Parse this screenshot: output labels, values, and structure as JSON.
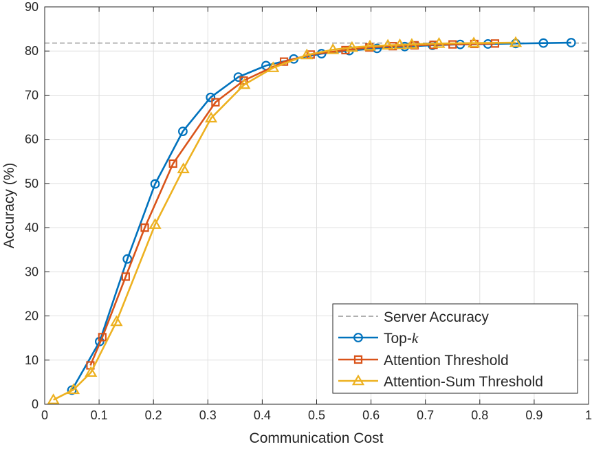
{
  "chart_data": {
    "type": "line",
    "title": "",
    "xlabel": "Communication Cost",
    "ylabel": "Accuracy (%)",
    "xlim": [
      0,
      1
    ],
    "ylim": [
      0,
      90
    ],
    "xticks": [
      "0",
      "0.1",
      "0.2",
      "0.3",
      "0.4",
      "0.5",
      "0.6",
      "0.7",
      "0.8",
      "0.9",
      "1"
    ],
    "yticks": [
      "0",
      "10",
      "20",
      "30",
      "40",
      "50",
      "60",
      "70",
      "80",
      "90"
    ],
    "grid": true,
    "legend_position": "bottom-right",
    "reference_line": {
      "name": "Server Accuracy",
      "y": 81.8,
      "color": "#808080",
      "style": "dashed"
    },
    "series": [
      {
        "name_prefix": "Top-",
        "name_var": "k",
        "color": "#0072BD",
        "marker": "circle",
        "x": [
          0.05,
          0.101,
          0.152,
          0.203,
          0.254,
          0.305,
          0.356,
          0.407,
          0.458,
          0.509,
          0.56,
          0.611,
          0.662,
          0.713,
          0.764,
          0.815,
          0.866,
          0.917,
          0.968
        ],
        "y": [
          3.2,
          14.2,
          32.9,
          49.9,
          61.8,
          69.5,
          74.1,
          76.7,
          78.2,
          79.4,
          80.1,
          80.6,
          81.0,
          81.3,
          81.5,
          81.6,
          81.7,
          81.8,
          81.9
        ]
      },
      {
        "name": "Attention Threshold",
        "color": "#D95319",
        "marker": "square",
        "x": [
          0.084,
          0.106,
          0.149,
          0.184,
          0.236,
          0.314,
          0.366,
          0.44,
          0.489,
          0.553,
          0.597,
          0.64,
          0.68,
          0.715,
          0.75,
          0.79,
          0.828
        ],
        "y": [
          8.8,
          15.2,
          28.9,
          40.0,
          54.5,
          68.4,
          73.3,
          77.6,
          79.2,
          80.2,
          80.8,
          81.1,
          81.3,
          81.4,
          81.5,
          81.6,
          81.7
        ]
      },
      {
        "name": "Attention-Sum Threshold",
        "color": "#EDB120",
        "marker": "triangle",
        "x": [
          0.016,
          0.053,
          0.085,
          0.132,
          0.203,
          0.255,
          0.306,
          0.367,
          0.42,
          0.482,
          0.53,
          0.565,
          0.598,
          0.631,
          0.653,
          0.675,
          0.725,
          0.789,
          0.866
        ],
        "y": [
          1.0,
          3.3,
          7.2,
          18.7,
          40.7,
          53.3,
          64.8,
          72.4,
          76.2,
          79.1,
          80.3,
          80.8,
          81.1,
          81.3,
          81.4,
          81.5,
          81.7,
          81.8,
          81.9
        ]
      }
    ]
  }
}
